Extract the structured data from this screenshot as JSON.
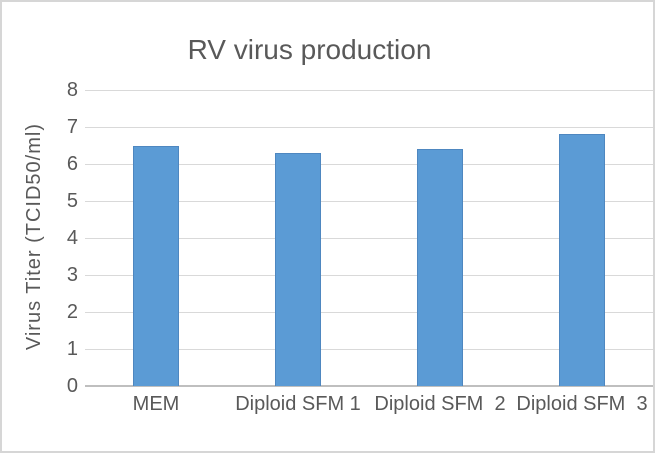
{
  "chart_data": {
    "type": "bar",
    "title": "RV virus production",
    "categories": [
      "MEM",
      "Diploid SFM 1",
      "Diploid SFM  2",
      "Diploid SFM  3"
    ],
    "values": [
      6.5,
      6.3,
      6.4,
      6.8
    ],
    "xlabel": "",
    "ylabel": "Virus Titer (TCID50/ml)",
    "ylim": [
      0,
      8
    ],
    "yticks": [
      0,
      1,
      2,
      3,
      4,
      5,
      6,
      7,
      8
    ],
    "grid": true,
    "legend": "none",
    "colors": {
      "bar_fill": "#5B9BD5",
      "bar_border": "#4E87C0",
      "gridline": "#D9D9D9",
      "axis_line": "#BFBFBF",
      "text": "#595959",
      "chart_border": "#D6D6D6",
      "background": "#FFFFFF"
    }
  }
}
